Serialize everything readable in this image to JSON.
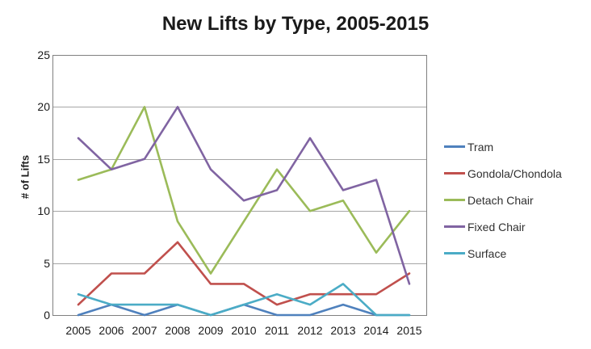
{
  "title": "New Lifts by Type, 2005-2015",
  "chart_data": {
    "type": "line",
    "x": [
      "2005",
      "2006",
      "2007",
      "2008",
      "2009",
      "2010",
      "2011",
      "2012",
      "2013",
      "2014",
      "2015"
    ],
    "series": [
      {
        "name": "Tram",
        "color": "#4F81BD",
        "values": [
          0,
          1,
          0,
          1,
          0,
          1,
          0,
          0,
          1,
          0,
          0
        ]
      },
      {
        "name": "Gondola/Chondola",
        "color": "#C0504D",
        "values": [
          1,
          4,
          4,
          7,
          3,
          3,
          1,
          2,
          2,
          2,
          4
        ]
      },
      {
        "name": "Detach Chair",
        "color": "#9BBB59",
        "values": [
          13,
          14,
          20,
          9,
          4,
          9,
          14,
          10,
          11,
          6,
          10
        ]
      },
      {
        "name": "Fixed Chair",
        "color": "#8064A2",
        "values": [
          17,
          14,
          15,
          20,
          14,
          11,
          12,
          17,
          12,
          13,
          3
        ]
      },
      {
        "name": "Surface",
        "color": "#4BACC6",
        "values": [
          2,
          1,
          1,
          1,
          0,
          1,
          2,
          1,
          3,
          0,
          0
        ]
      }
    ],
    "ylabel": "# of Lifts",
    "xlabel": "",
    "ylim": [
      0,
      25
    ],
    "ytick_step": 5,
    "grid": true,
    "legend_position": "right"
  },
  "colors": {
    "gridline": "#A6A6A6",
    "plot_border": "#808080",
    "background": "#FFFFFF",
    "text": "#1A1A1A"
  }
}
